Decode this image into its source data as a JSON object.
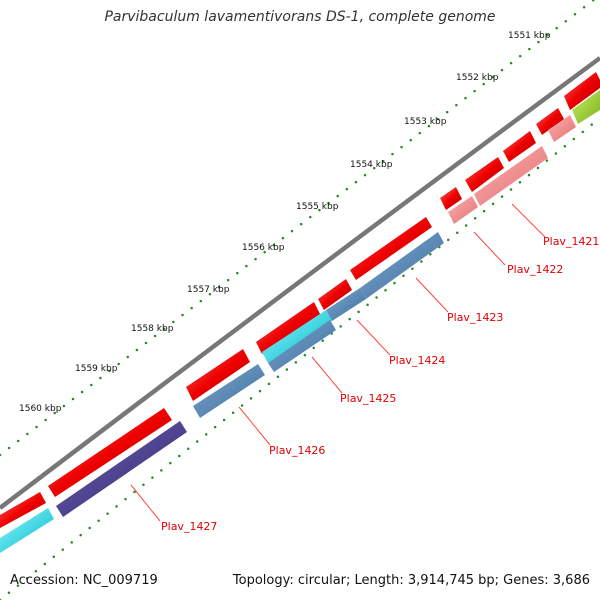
{
  "title": "Parvibaculum lavamentivorans DS-1, complete genome",
  "footer": {
    "accession": "Accession: NC_009719",
    "summary": "Topology: circular; Length: 3,914,745 bp; Genes: 3,686"
  },
  "ruler": {
    "ticks": [
      "1551 kbp",
      "1552 kbp",
      "1553 kbp",
      "1554 kbp",
      "1555 kbp",
      "1556 kbp",
      "1557 kbp",
      "1558 kbp",
      "1559 kbp",
      "1560 kbp"
    ]
  },
  "genes": [
    {
      "label": "Plav_1421"
    },
    {
      "label": "Plav_1422"
    },
    {
      "label": "Plav_1423"
    },
    {
      "label": "Plav_1424"
    },
    {
      "label": "Plav_1425"
    },
    {
      "label": "Plav_1426"
    },
    {
      "label": "Plav_1427"
    }
  ],
  "colors": {
    "backbone": "#888888",
    "forward_gene": "#ee0000",
    "cog_light_red": "#f08080",
    "cog_steelblue": "#4682b4",
    "cog_cyan": "#00e5ee",
    "cog_darkblue": "#483d8b",
    "cog_yellowgreen": "#9acd32",
    "label_red": "#e00000",
    "tick_green": "#228b22"
  }
}
